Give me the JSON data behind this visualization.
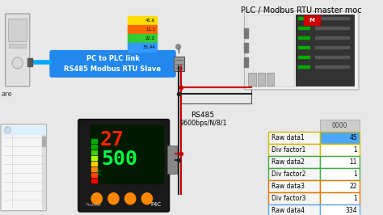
{
  "bg_color": "#e8e8e8",
  "title": "PLC / Modbus RTU master moc",
  "title_fontsize": 7,
  "table_rows": [
    {
      "label": "Raw data1",
      "value": "45",
      "val_color": "#4da6ff"
    },
    {
      "label": "Div factor1",
      "value": "1",
      "val_color": "#ffffff"
    },
    {
      "label": "Raw data2",
      "value": "11",
      "val_color": "#ffffff"
    },
    {
      "label": "Div factor2",
      "value": "1",
      "val_color": "#ffffff"
    },
    {
      "label": "Raw data3",
      "value": "22",
      "val_color": "#ffffff"
    },
    {
      "label": "Div factor3",
      "value": "1",
      "val_color": "#ffffff"
    },
    {
      "label": "Raw data4",
      "value": "334",
      "val_color": "#ffffff"
    }
  ],
  "table_header": "0000",
  "cable_label": "PC to PLC link\nRS485 Modbus RTU Slave",
  "rs485_label": "RS485",
  "baud_label": "9600bps/N/8/1",
  "buffer_values": [
    "45.6",
    "11.1",
    "22.2",
    "33.44"
  ],
  "buffer_colors": [
    "#ffdd00",
    "#ff6600",
    "#33cc33",
    "#3399ff"
  ],
  "ware_label": "are",
  "border_colors": [
    "#ccbb00",
    "#ccbb00",
    "#44aa44",
    "#44aa44",
    "#dd7700",
    "#dd7700",
    "#55aaff"
  ]
}
